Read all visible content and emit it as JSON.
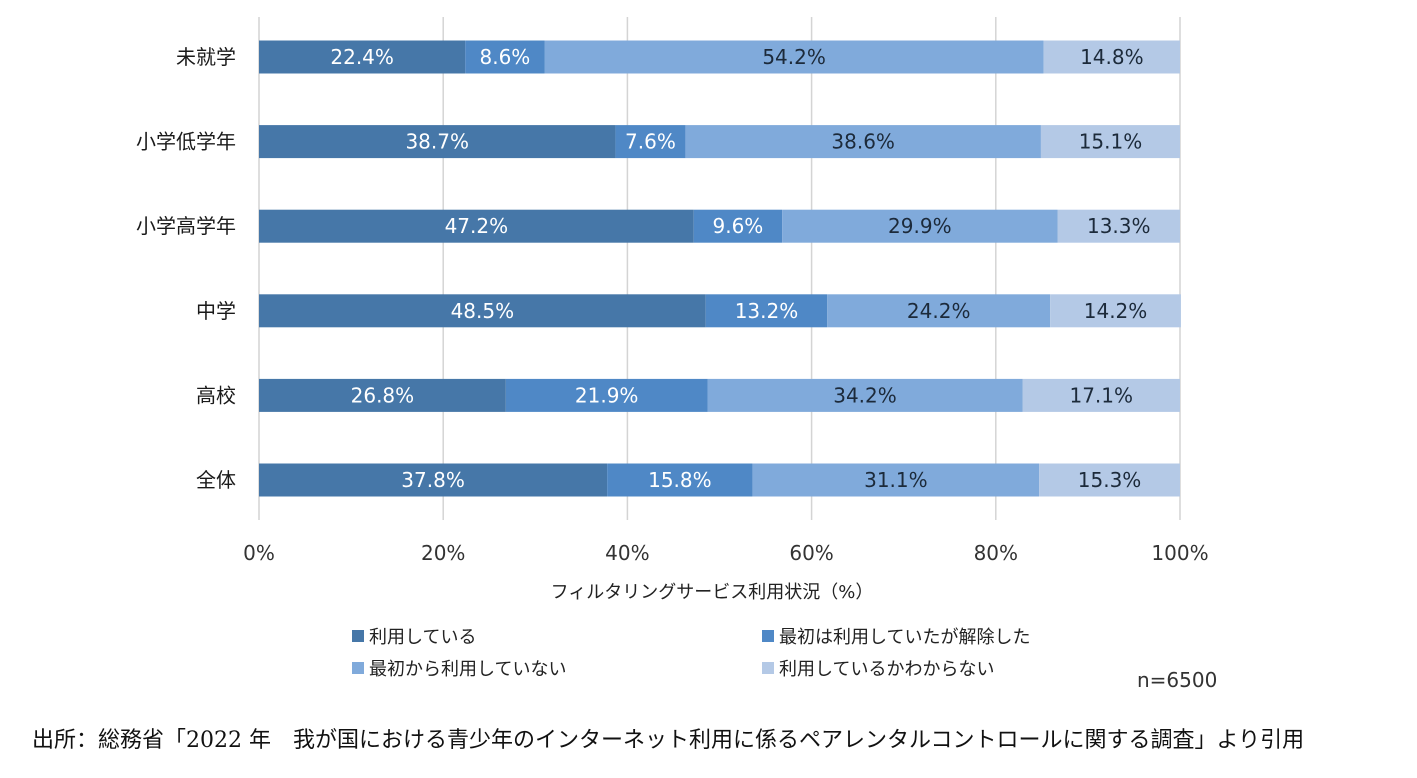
{
  "chart_data": {
    "type": "bar",
    "orientation": "horizontal",
    "stacked": "percent",
    "categories": [
      "未就学",
      "小学低学年",
      "小学高学年",
      "中学",
      "高校",
      "全体"
    ],
    "series": [
      {
        "name": "利用している",
        "color": "#4677A8",
        "values": [
          22.4,
          38.7,
          47.2,
          48.5,
          26.8,
          37.8
        ],
        "labels": [
          "22.4%",
          "38.7%",
          "47.2%",
          "48.5%",
          "26.8%",
          "37.8%"
        ]
      },
      {
        "name": "最初は利用していたが解除した",
        "color": "#4F88C6",
        "values": [
          8.6,
          7.6,
          9.6,
          13.2,
          21.9,
          15.8
        ],
        "labels": [
          "8.6%",
          "7.6%",
          "9.6%",
          "13.2%",
          "21.9%",
          "15.8%"
        ]
      },
      {
        "name": "最初から利用していない",
        "color": "#80AADB",
        "values": [
          54.2,
          38.6,
          29.9,
          24.2,
          34.2,
          31.1
        ],
        "labels": [
          "54.2%",
          "38.6%",
          "29.9%",
          "24.2%",
          "34.2%",
          "31.1%"
        ]
      },
      {
        "name": "利用しているかわからない",
        "color": "#B4C9E6",
        "values": [
          14.8,
          15.1,
          13.3,
          14.2,
          17.1,
          15.3
        ],
        "labels": [
          "14.8%",
          "15.1%",
          "13.3%",
          "14.2%",
          "17.1%",
          "15.3%"
        ]
      }
    ],
    "xlabel": "フィルタリングサービス利用状況（%）",
    "ylabel": "",
    "xlim": [
      0,
      100
    ],
    "xticks": [
      0,
      20,
      40,
      60,
      80,
      100
    ],
    "xtick_labels": [
      "0%",
      "20%",
      "40%",
      "60%",
      "80%",
      "100%"
    ],
    "grid": true,
    "legend_position": "bottom"
  },
  "note": "n=6500",
  "source": "出所：総務省「2022 年　我が国における青少年のインターネット利用に係るペアレンタルコントロールに関する調査」より引用"
}
